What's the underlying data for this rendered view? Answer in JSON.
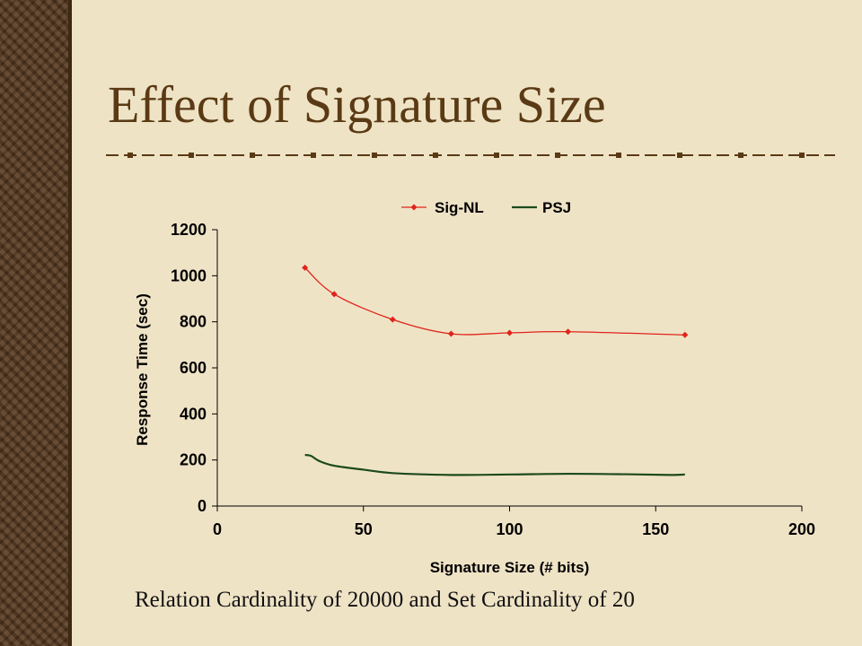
{
  "slide": {
    "title": "Effect of Signature Size",
    "caption": "Relation Cardinality of 20000 and Set Cardinality of 20"
  },
  "colors": {
    "background": "#efe3c6",
    "title": "#5a3a14",
    "band": "#5a3c22",
    "sig_nl": "#e0241a",
    "psj": "#1c4a1c"
  },
  "chart_data": {
    "type": "line",
    "title": "",
    "xlabel": "Signature Size (# bits)",
    "ylabel": "Response Time (sec)",
    "xlim": [
      0,
      200
    ],
    "ylim": [
      0,
      1200
    ],
    "x_ticks": [
      0,
      50,
      100,
      150,
      200
    ],
    "y_ticks": [
      0,
      200,
      400,
      600,
      800,
      1000,
      1200
    ],
    "grid": false,
    "legend_position": "top",
    "series": [
      {
        "name": "Sig-NL",
        "x": [
          30,
          40,
          60,
          80,
          100,
          120,
          160
        ],
        "y": [
          1035,
          920,
          810,
          748,
          752,
          757,
          743
        ],
        "markers": true,
        "color": "#e0241a"
      },
      {
        "name": "PSJ",
        "x": [
          30,
          32,
          35,
          40,
          50,
          60,
          80,
          100,
          120,
          140,
          155,
          160
        ],
        "y": [
          222,
          218,
          195,
          175,
          158,
          143,
          135,
          137,
          140,
          138,
          135,
          137
        ],
        "markers": false,
        "color": "#1c4a1c"
      }
    ]
  }
}
